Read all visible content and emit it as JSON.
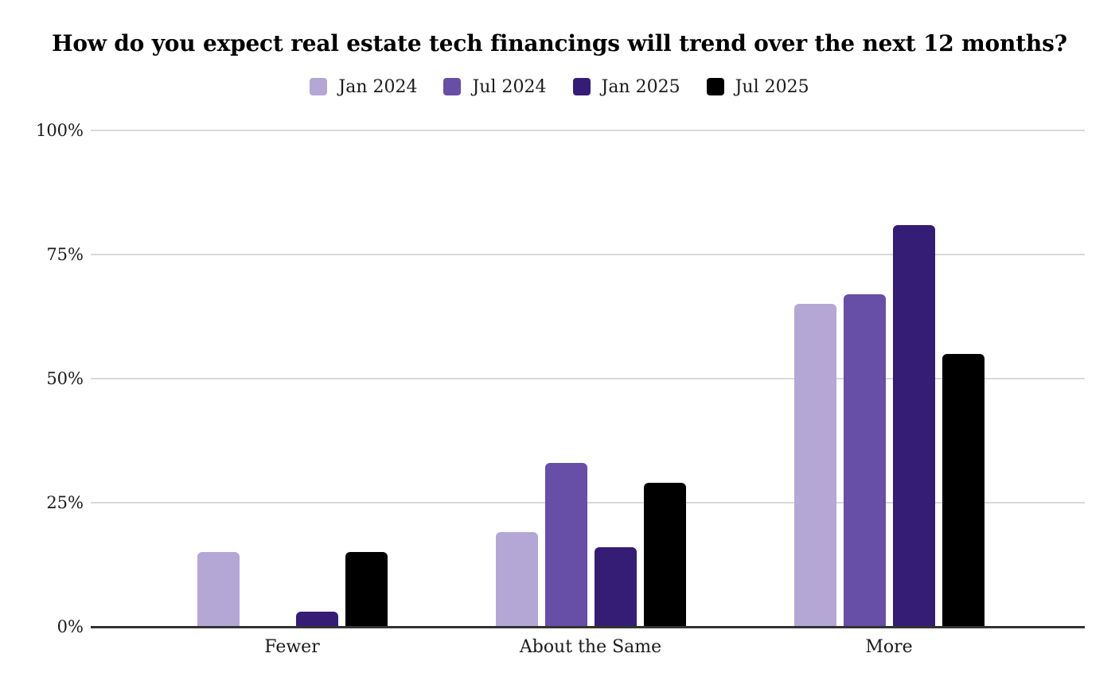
{
  "chart_data": {
    "type": "bar",
    "title": "How do you expect real estate tech financings will trend over the next 12 months?",
    "categories": [
      "Fewer",
      "About the Same",
      "More"
    ],
    "series": [
      {
        "name": "Jan 2024",
        "color": "#b4a7d6",
        "values": [
          15,
          19,
          65
        ]
      },
      {
        "name": "Jul 2024",
        "color": "#674ea7",
        "values": [
          0,
          33,
          67
        ]
      },
      {
        "name": "Jan 2025",
        "color": "#351c75",
        "values": [
          3,
          16,
          81
        ]
      },
      {
        "name": "Jul 2025",
        "color": "#000000",
        "values": [
          15,
          29,
          55
        ]
      }
    ],
    "yticks": [
      {
        "value": 0,
        "label": "0%"
      },
      {
        "value": 25,
        "label": "25%"
      },
      {
        "value": 50,
        "label": "50%"
      },
      {
        "value": 75,
        "label": "75%"
      },
      {
        "value": 100,
        "label": "100%"
      }
    ],
    "ylim": [
      0,
      100
    ],
    "xlabel": "",
    "ylabel": "",
    "grid": true,
    "legend_position": "top",
    "colors": {
      "background": "#ffffff",
      "gridline": "#d9d9d9",
      "axis_line": "#333333",
      "label_text": "#1a1a1a",
      "title_text": "#000000"
    }
  }
}
